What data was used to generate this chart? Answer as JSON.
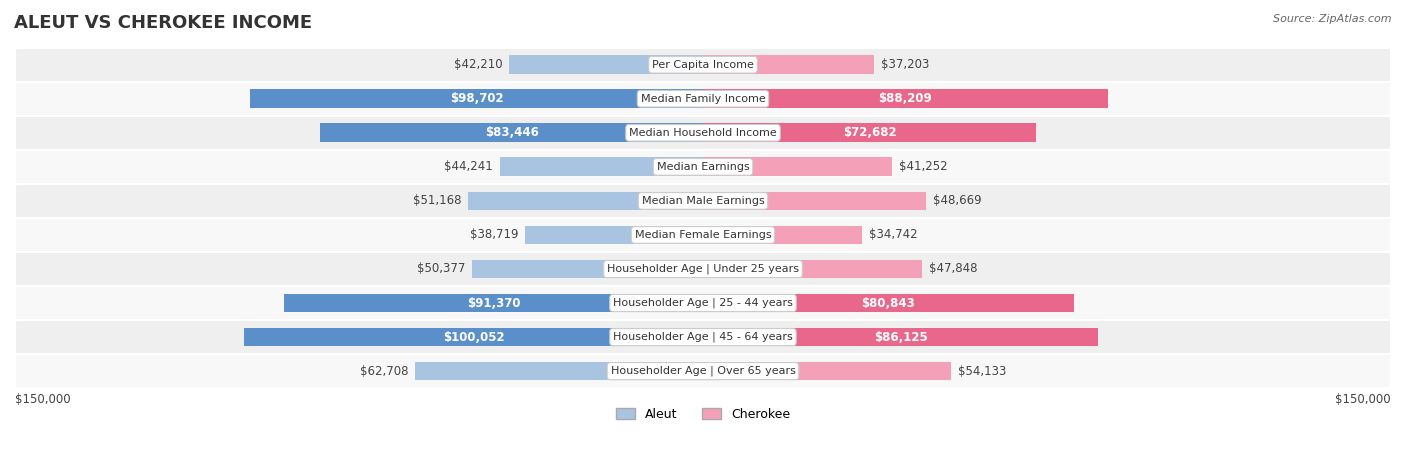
{
  "title": "ALEUT VS CHEROKEE INCOME",
  "source": "Source: ZipAtlas.com",
  "categories": [
    "Per Capita Income",
    "Median Family Income",
    "Median Household Income",
    "Median Earnings",
    "Median Male Earnings",
    "Median Female Earnings",
    "Householder Age | Under 25 years",
    "Householder Age | 25 - 44 years",
    "Householder Age | 45 - 64 years",
    "Householder Age | Over 65 years"
  ],
  "aleut_values": [
    42210,
    98702,
    83446,
    44241,
    51168,
    38719,
    50377,
    91370,
    100052,
    62708
  ],
  "cherokee_values": [
    37203,
    88209,
    72682,
    41252,
    48669,
    34742,
    47848,
    80843,
    86125,
    54133
  ],
  "aleut_labels": [
    "$42,210",
    "$98,702",
    "$83,446",
    "$44,241",
    "$51,168",
    "$38,719",
    "$50,377",
    "$91,370",
    "$100,052",
    "$62,708"
  ],
  "cherokee_labels": [
    "$37,203",
    "$88,209",
    "$72,682",
    "$41,252",
    "$48,669",
    "$34,742",
    "$47,848",
    "$80,843",
    "$86,125",
    "$54,133"
  ],
  "max_value": 150000,
  "aleut_color_light": "#a8c4e0",
  "aleut_color_dark": "#5b8fc9",
  "cherokee_color_light": "#f4a0b8",
  "cherokee_color_dark": "#e8678a",
  "bar_bg_color": "#f0f0f0",
  "row_bg_color_light": "#f8f8f8",
  "row_bg_color_dark": "#efefef",
  "title_fontsize": 13,
  "label_fontsize": 8.5,
  "category_fontsize": 8,
  "legend_fontsize": 9,
  "source_fontsize": 8
}
